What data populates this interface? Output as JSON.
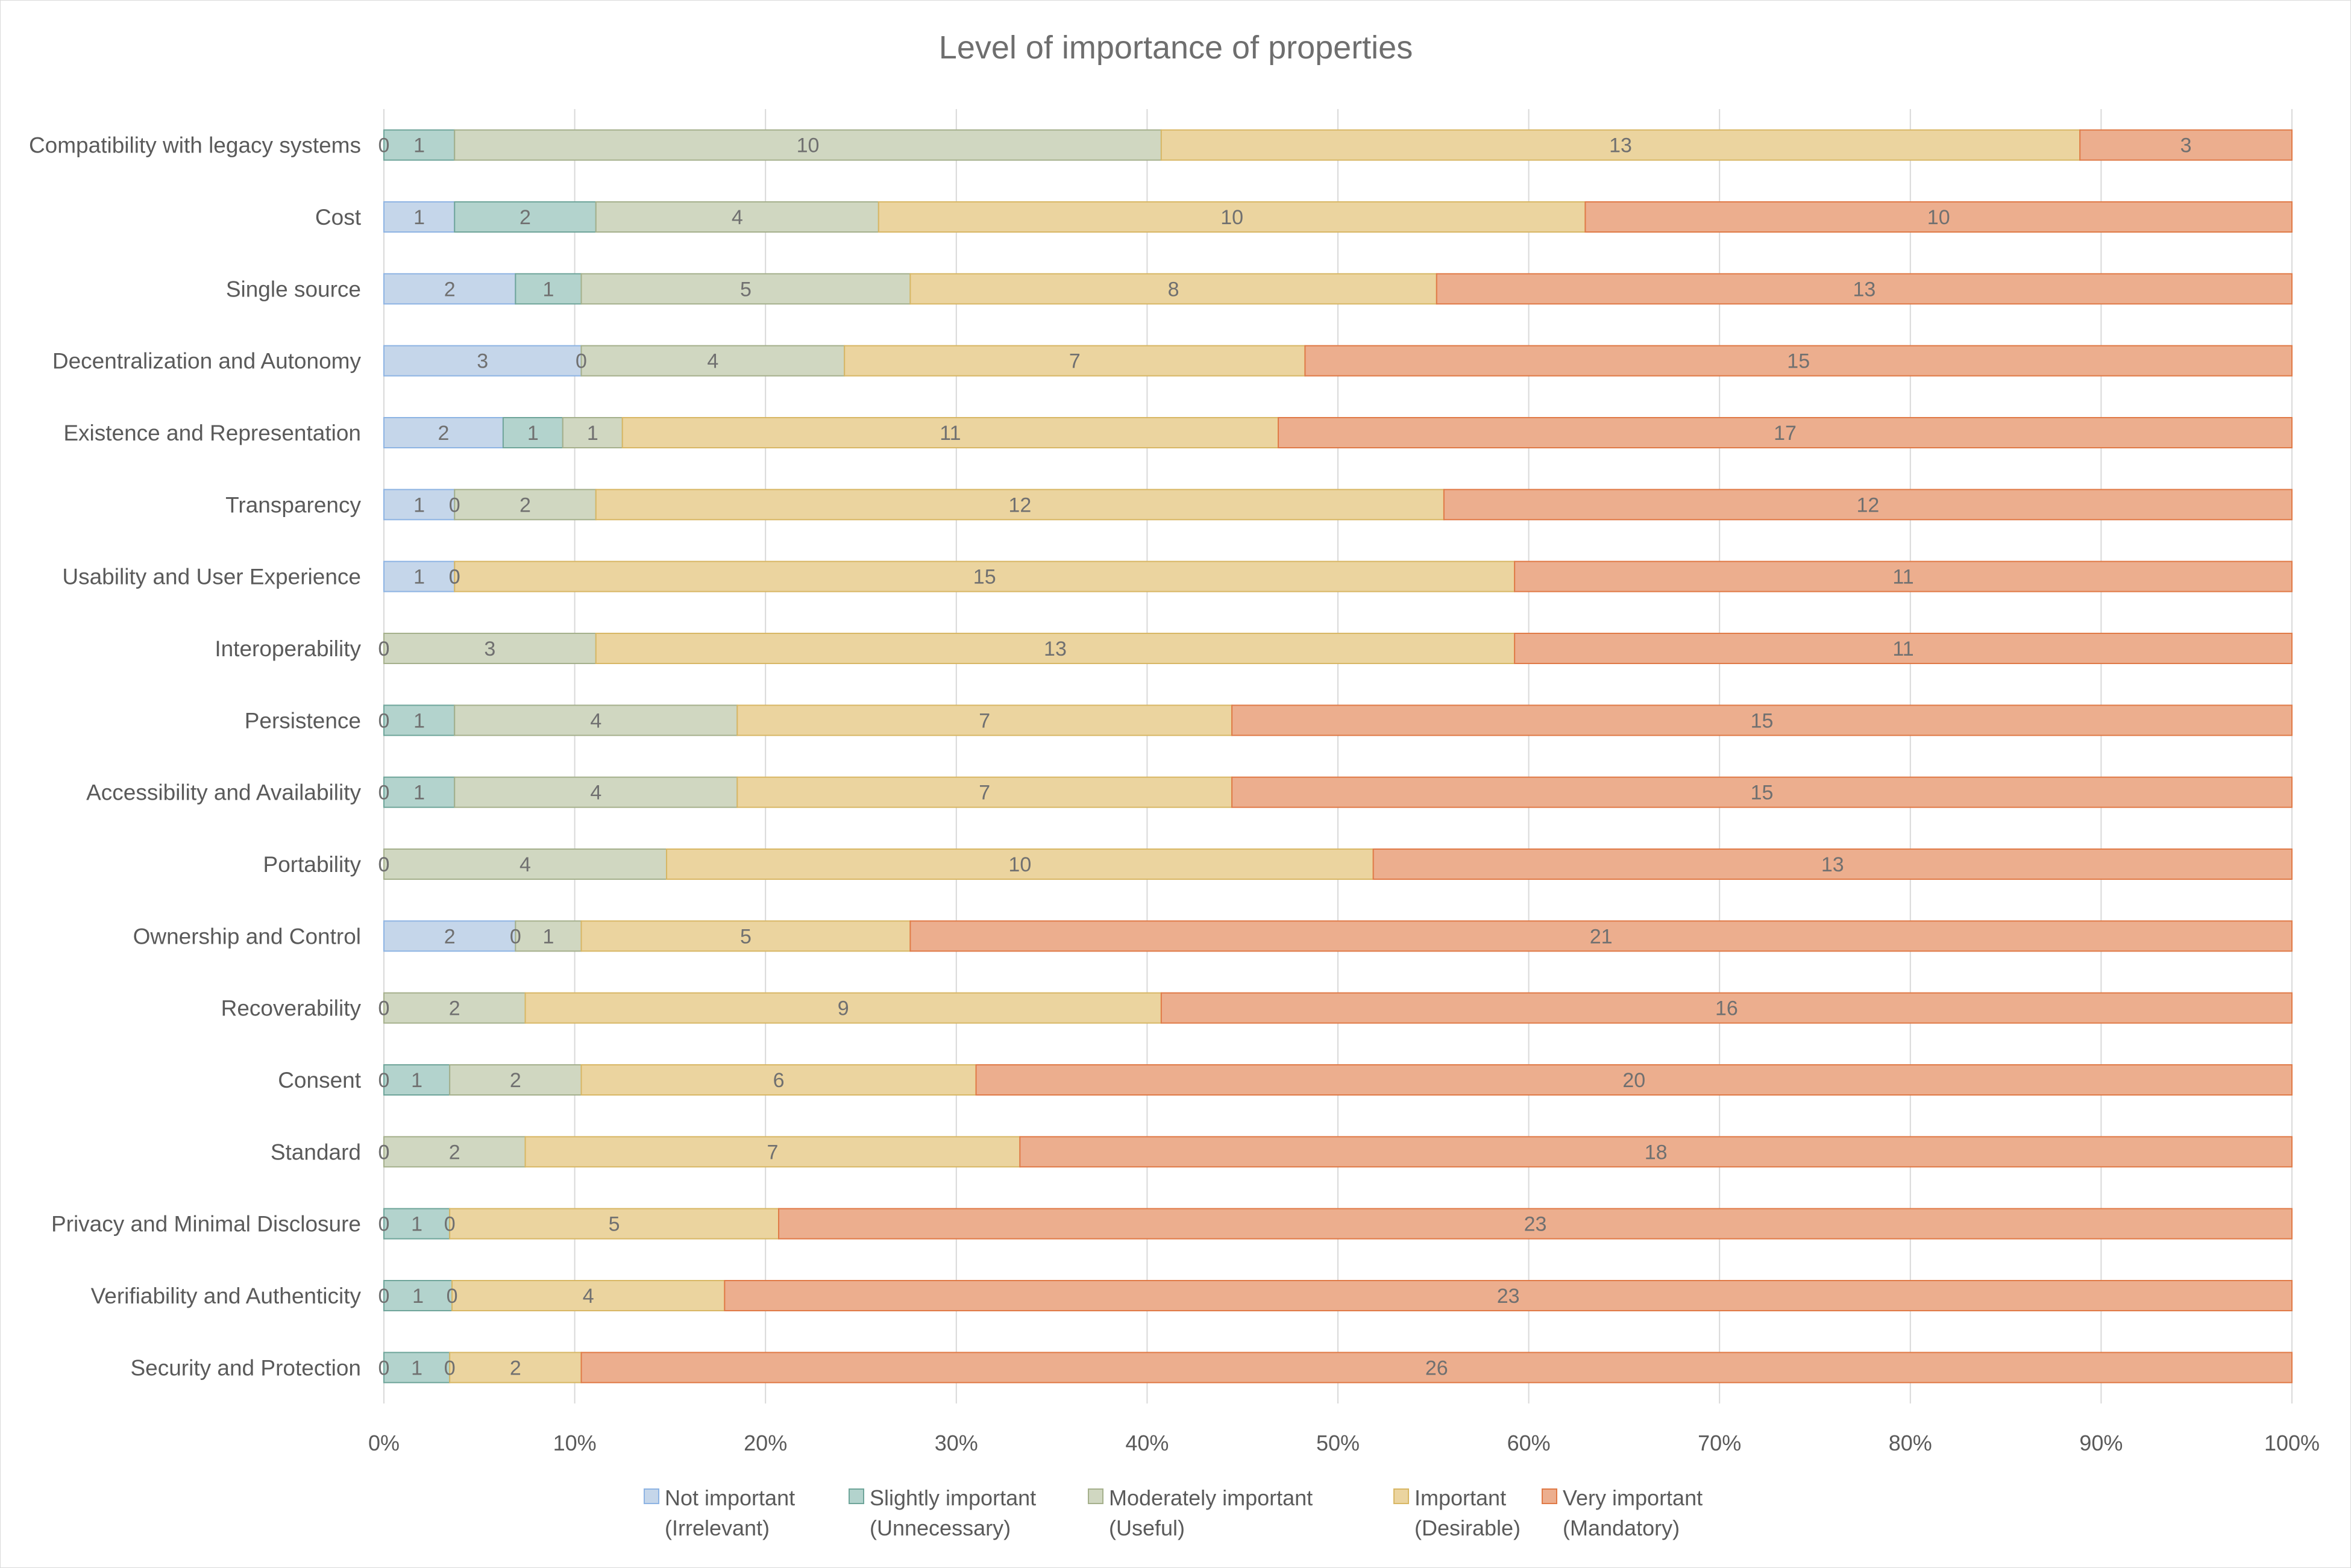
{
  "chart_data": {
    "type": "bar",
    "orientation": "horizontal",
    "stacked": "percent",
    "title": "Level of importance of properties",
    "xlabel": "",
    "ylabel": "",
    "xlim": [
      0,
      100
    ],
    "x_ticks": [
      "0%",
      "10%",
      "20%",
      "30%",
      "40%",
      "50%",
      "60%",
      "70%",
      "80%",
      "90%",
      "100%"
    ],
    "grid": true,
    "legend_position": "bottom",
    "categories": [
      "Compatibility with legacy systems",
      "Cost",
      "Single source",
      "Decentralization and Autonomy",
      "Existence and Representation",
      "Transparency",
      "Usability and User Experience",
      "Interoperability",
      "Persistence",
      "Accessibility and Availability",
      "Portability",
      "Ownership and Control",
      "Recoverability",
      "Consent",
      "Standard",
      "Privacy and Minimal Disclosure",
      "Verifiability and Authenticity",
      "Security and Protection"
    ],
    "series": [
      {
        "name": "Not important (Irrelevant)",
        "legend_lines": [
          "Not important",
          "(Irrelevant)"
        ],
        "fill": "#c5d6ea",
        "stroke": "#8eb4e3",
        "values": [
          0,
          1,
          2,
          3,
          2,
          1,
          1,
          0,
          0,
          0,
          0,
          2,
          0,
          0,
          0,
          0,
          0,
          0
        ]
      },
      {
        "name": "Slightly important (Unnecessary)",
        "legend_lines": [
          "Slightly important",
          "(Unnecessary)"
        ],
        "fill": "#b3d3cd",
        "stroke": "#6fa59a",
        "values": [
          1,
          2,
          1,
          0,
          1,
          0,
          0,
          0,
          1,
          1,
          0,
          0,
          0,
          1,
          0,
          1,
          1,
          1
        ]
      },
      {
        "name": "Moderately important (Useful)",
        "legend_lines": [
          "Moderately important",
          "(Useful)"
        ],
        "fill": "#d0d7c1",
        "stroke": "#a5b08c",
        "values": [
          10,
          4,
          5,
          4,
          1,
          2,
          0,
          3,
          4,
          4,
          4,
          1,
          2,
          2,
          2,
          0,
          0,
          0
        ]
      },
      {
        "name": "Important (Desirable)",
        "legend_lines": [
          "Important",
          "(Desirable)"
        ],
        "fill": "#ebd49f",
        "stroke": "#d8b765",
        "values": [
          13,
          10,
          8,
          7,
          11,
          12,
          15,
          13,
          7,
          7,
          10,
          5,
          9,
          6,
          7,
          5,
          4,
          2
        ]
      },
      {
        "name": "Very important (Mandatory)",
        "legend_lines": [
          "Very important",
          "(Mandatory)"
        ],
        "fill": "#ecae8e",
        "stroke": "#e07a47",
        "values": [
          3,
          10,
          13,
          15,
          17,
          12,
          11,
          11,
          15,
          15,
          13,
          21,
          16,
          20,
          18,
          23,
          23,
          26
        ]
      }
    ]
  }
}
